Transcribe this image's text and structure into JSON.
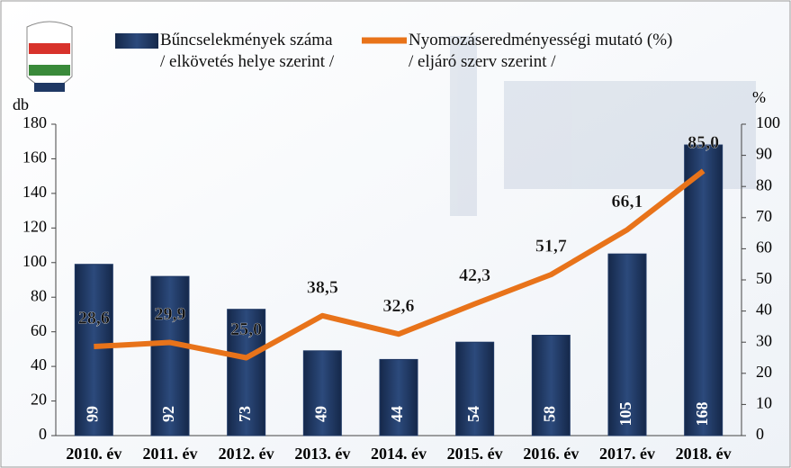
{
  "chart_data": {
    "type": "bar_line",
    "y_label": "db",
    "y2_label": "%",
    "categories": [
      "2010. év",
      "2011. év",
      "2012. év",
      "2013. év",
      "2014. év",
      "2015. év",
      "2016. év",
      "2017. év",
      "2018. év"
    ],
    "series": [
      {
        "name": "Bűncselekmények száma\n/ elkövetés helye szerint /",
        "type": "bar",
        "color": "#1f3864",
        "values": [
          99,
          92,
          73,
          49,
          44,
          54,
          58,
          105,
          168
        ]
      },
      {
        "name": "Nyomozáseredményességi mutató (%)\n/ eljáró szerv szerint /",
        "type": "line",
        "axis": "y2",
        "color": "#e8731a",
        "values": [
          28.6,
          29.9,
          25.0,
          38.5,
          32.6,
          42.3,
          51.7,
          66.1,
          85.0
        ],
        "value_labels": [
          "28,6",
          "29,9",
          "25,0",
          "38,5",
          "32,6",
          "42,3",
          "51,7",
          "66,1",
          "85,0"
        ]
      }
    ],
    "ylim": [
      0,
      180
    ],
    "yticks": [
      0,
      20,
      40,
      60,
      80,
      100,
      120,
      140,
      160,
      180
    ],
    "y2lim": [
      0,
      100
    ],
    "y2ticks": [
      0,
      10,
      20,
      30,
      40,
      50,
      60,
      70,
      80,
      90,
      100
    ]
  }
}
